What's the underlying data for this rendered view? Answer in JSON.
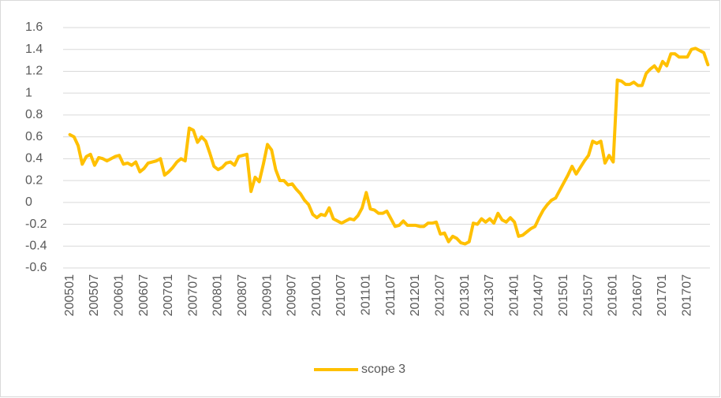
{
  "chart_data": {
    "type": "line",
    "categories": [
      "200501",
      null,
      null,
      null,
      null,
      null,
      "200507",
      null,
      null,
      null,
      null,
      null,
      "200601",
      null,
      null,
      null,
      null,
      null,
      "200607",
      null,
      null,
      null,
      null,
      null,
      "200701",
      null,
      null,
      null,
      null,
      null,
      "200707",
      null,
      null,
      null,
      null,
      null,
      "200801",
      null,
      null,
      null,
      null,
      null,
      "200807",
      null,
      null,
      null,
      null,
      null,
      "200901",
      null,
      null,
      null,
      null,
      null,
      "200907",
      null,
      null,
      null,
      null,
      null,
      "201001",
      null,
      null,
      null,
      null,
      null,
      "201007",
      null,
      null,
      null,
      null,
      null,
      "201101",
      null,
      null,
      null,
      null,
      null,
      "201107",
      null,
      null,
      null,
      null,
      null,
      "201201",
      null,
      null,
      null,
      null,
      null,
      "201207",
      null,
      null,
      null,
      null,
      null,
      "201301",
      null,
      null,
      null,
      null,
      null,
      "201307",
      null,
      null,
      null,
      null,
      null,
      "201401",
      null,
      null,
      null,
      null,
      null,
      "201407",
      null,
      null,
      null,
      null,
      null,
      "201501",
      null,
      null,
      null,
      null,
      null,
      "201507",
      null,
      null,
      null,
      null,
      null,
      "201601",
      null,
      null,
      null,
      null,
      null,
      "201607",
      null,
      null,
      null,
      null,
      null,
      "201701",
      null,
      null,
      null,
      null,
      null,
      "201707",
      null,
      null,
      null,
      null,
      null
    ],
    "series": [
      {
        "name": "scope 3",
        "color": "#ffc000",
        "values": [
          0.62,
          0.6,
          0.52,
          0.35,
          0.42,
          0.44,
          0.34,
          0.41,
          0.4,
          0.38,
          0.4,
          0.42,
          0.43,
          0.35,
          0.36,
          0.34,
          0.37,
          0.28,
          0.31,
          0.36,
          0.37,
          0.38,
          0.4,
          0.25,
          0.28,
          0.32,
          0.37,
          0.4,
          0.38,
          0.68,
          0.66,
          0.55,
          0.6,
          0.56,
          0.45,
          0.33,
          0.3,
          0.32,
          0.36,
          0.37,
          0.34,
          0.42,
          0.43,
          0.44,
          0.1,
          0.23,
          0.19,
          0.35,
          0.53,
          0.48,
          0.3,
          0.2,
          0.2,
          0.16,
          0.17,
          0.12,
          0.08,
          0.02,
          -0.02,
          -0.11,
          -0.14,
          -0.11,
          -0.12,
          -0.05,
          -0.15,
          -0.17,
          -0.19,
          -0.17,
          -0.15,
          -0.16,
          -0.12,
          -0.05,
          0.09,
          -0.06,
          -0.07,
          -0.1,
          -0.1,
          -0.08,
          -0.15,
          -0.22,
          -0.21,
          -0.17,
          -0.21,
          -0.21,
          -0.21,
          -0.22,
          -0.22,
          -0.19,
          -0.19,
          -0.18,
          -0.29,
          -0.28,
          -0.36,
          -0.31,
          -0.33,
          -0.37,
          -0.38,
          -0.36,
          -0.19,
          -0.2,
          -0.15,
          -0.18,
          -0.15,
          -0.19,
          -0.1,
          -0.16,
          -0.18,
          -0.14,
          -0.18,
          -0.31,
          -0.3,
          -0.27,
          -0.24,
          -0.22,
          -0.14,
          -0.07,
          -0.02,
          0.02,
          0.04,
          0.11,
          0.18,
          0.25,
          0.33,
          0.26,
          0.32,
          0.38,
          0.43,
          0.56,
          0.54,
          0.56,
          0.36,
          0.43,
          0.37,
          1.12,
          1.11,
          1.08,
          1.08,
          1.1,
          1.07,
          1.07,
          1.18,
          1.22,
          1.25,
          1.2,
          1.29,
          1.25,
          1.36,
          1.36,
          1.33,
          1.33,
          1.33,
          1.4,
          1.41,
          1.39,
          1.37,
          1.26
        ]
      }
    ],
    "ylim": [
      -0.6,
      1.6
    ],
    "yticks": [
      -0.6,
      -0.4,
      -0.2,
      0,
      0.2,
      0.4,
      0.6,
      0.8,
      1,
      1.2,
      1.4,
      1.6
    ],
    "grid": true,
    "legend": "bottom"
  }
}
